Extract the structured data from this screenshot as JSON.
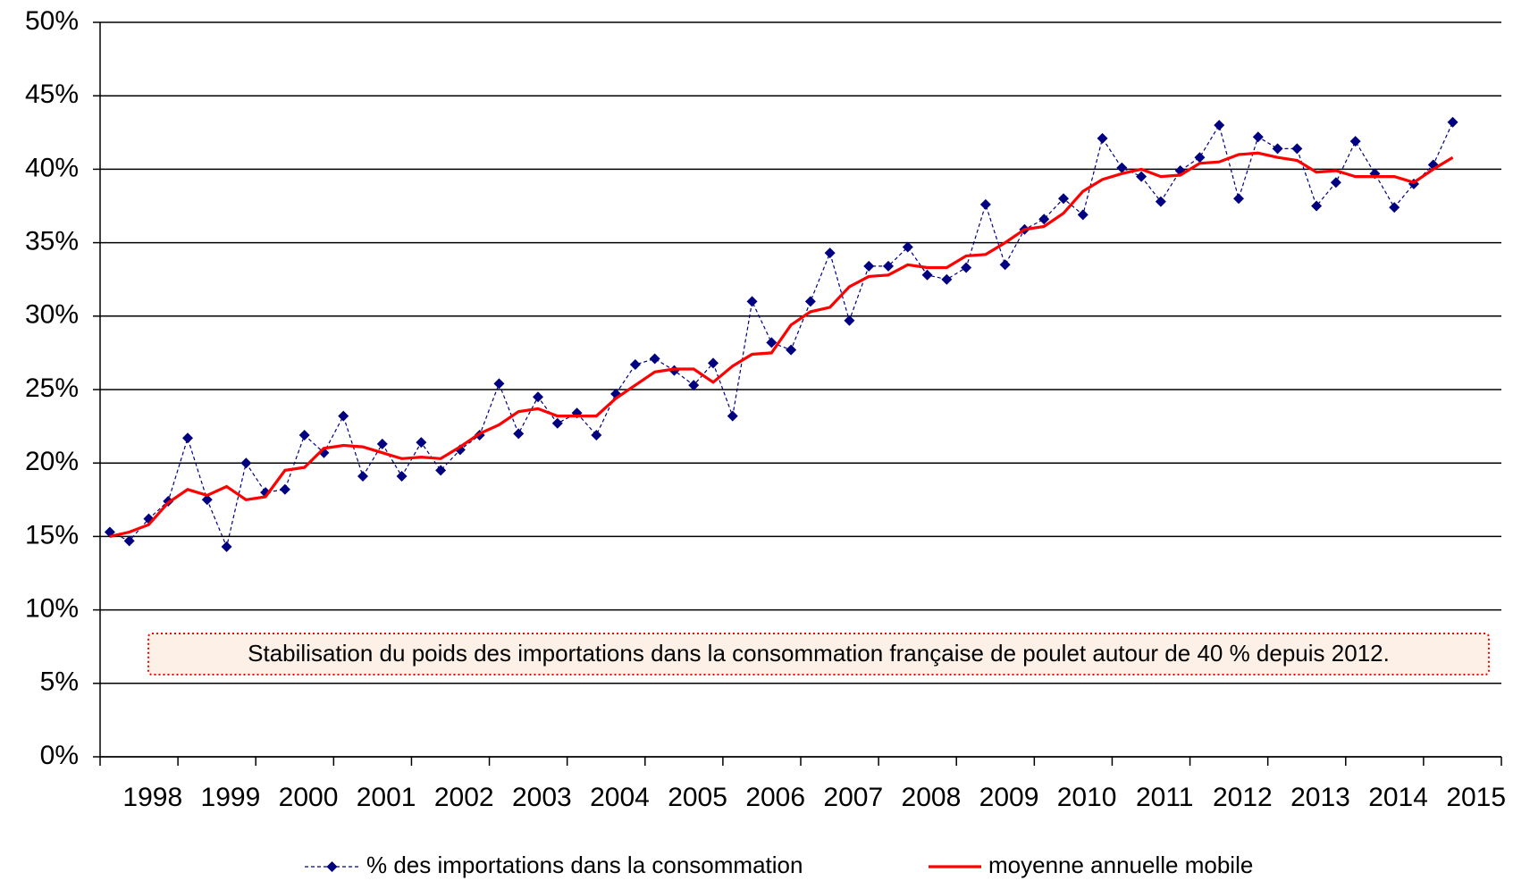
{
  "chart_data": {
    "type": "line",
    "annotation": "Stabilisation du poids des importations dans la consommation française de poulet autour de 40 % depuis 2012.",
    "categories": [
      null,
      null,
      "1998",
      null,
      null,
      null,
      "1999",
      null,
      null,
      null,
      "2000",
      null,
      null,
      null,
      "2001",
      null,
      null,
      null,
      "2002",
      null,
      null,
      null,
      "2003",
      null,
      null,
      null,
      "2004",
      null,
      null,
      null,
      "2005",
      null,
      null,
      null,
      "2006",
      null,
      null,
      null,
      "2007",
      null,
      null,
      null,
      "2008",
      null,
      null,
      null,
      "2009",
      null,
      null,
      null,
      "2010",
      null,
      null,
      null,
      "2011",
      null,
      null,
      null,
      "2012",
      null,
      null,
      null,
      "2013",
      null,
      null,
      null,
      "2014",
      null,
      null,
      null,
      "2015",
      null
    ],
    "series": [
      {
        "name": "% des importations dans la consommation",
        "color": "#000080",
        "values": [
          15.3,
          14.7,
          16.2,
          17.4,
          21.7,
          17.5,
          14.3,
          20.0,
          18.0,
          18.2,
          21.9,
          20.7,
          23.2,
          19.1,
          21.3,
          19.1,
          21.4,
          19.5,
          20.9,
          21.9,
          25.4,
          22.0,
          24.5,
          22.7,
          23.4,
          21.9,
          24.7,
          26.7,
          27.1,
          26.3,
          25.3,
          26.8,
          23.2,
          31.0,
          28.2,
          27.7,
          31.0,
          34.3,
          29.7,
          33.4,
          33.4,
          34.7,
          32.8,
          32.5,
          33.3,
          37.6,
          33.5,
          35.9,
          36.6,
          38.0,
          36.9,
          42.1,
          40.1,
          39.5,
          37.8,
          39.9,
          40.8,
          43.0,
          38.0,
          42.2,
          41.4,
          41.4,
          37.5,
          39.1,
          41.9,
          39.7,
          37.4,
          39.0,
          40.3,
          43.2,
          null,
          null
        ]
      },
      {
        "name": "moyenne annuelle mobile",
        "color": "#ff0000",
        "values": [
          15.0,
          15.3,
          15.8,
          17.3,
          18.2,
          17.8,
          18.4,
          17.5,
          17.7,
          19.5,
          19.7,
          21.0,
          21.2,
          21.1,
          20.7,
          20.3,
          20.4,
          20.3,
          21.1,
          22.0,
          22.6,
          23.5,
          23.7,
          23.2,
          23.2,
          23.2,
          24.4,
          25.3,
          26.2,
          26.4,
          26.4,
          25.5,
          26.6,
          27.4,
          27.5,
          29.4,
          30.3,
          30.6,
          32.0,
          32.7,
          32.8,
          33.5,
          33.3,
          33.3,
          34.1,
          34.2,
          35.0,
          35.9,
          36.1,
          37.0,
          38.5,
          39.3,
          39.7,
          40.0,
          39.5,
          39.6,
          40.4,
          40.5,
          41.0,
          41.1,
          40.8,
          40.6,
          39.8,
          39.9,
          39.5,
          39.5,
          39.5,
          39.1,
          40.0,
          40.8,
          null,
          null
        ]
      }
    ],
    "ylim": [
      0,
      50
    ],
    "yticks": [
      {
        "value": 0,
        "label": "0%"
      },
      {
        "value": 5,
        "label": "5%"
      },
      {
        "value": 10,
        "label": "10%"
      },
      {
        "value": 15,
        "label": "15%"
      },
      {
        "value": 20,
        "label": "20%"
      },
      {
        "value": 25,
        "label": "25%"
      },
      {
        "value": 30,
        "label": "30%"
      },
      {
        "value": 35,
        "label": "35%"
      },
      {
        "value": 40,
        "label": "40%"
      },
      {
        "value": 45,
        "label": "45%"
      },
      {
        "value": 50,
        "label": "50%"
      }
    ],
    "grid": true
  }
}
